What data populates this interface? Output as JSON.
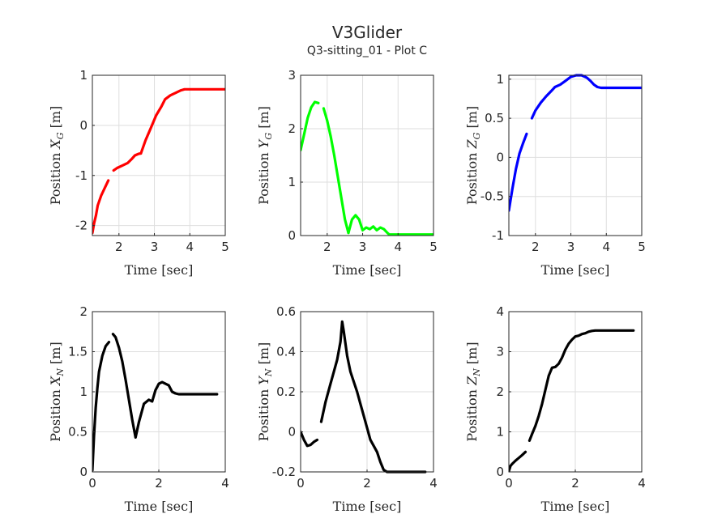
{
  "figure": {
    "title": "V3Glider",
    "subtitle": "Q3-sitting_01 - Plot C"
  },
  "chart_data": [
    {
      "type": "line",
      "xlabel": "Time [sec]",
      "ylabel": "Position",
      "ylabel_symbol": "X",
      "ylabel_sub": "G",
      "ylabel_unit": "[m]",
      "xlim": [
        1.25,
        5
      ],
      "ylim": [
        -2.2,
        1
      ],
      "xticks": [
        2,
        3,
        4,
        5
      ],
      "yticks": [
        -2,
        -1,
        0,
        1
      ],
      "xtick_labels": [
        "2",
        "3",
        "4",
        "5"
      ],
      "ytick_labels": [
        "-2",
        "-1",
        "0",
        "1"
      ],
      "grid": true,
      "color": "#ff0000",
      "series": [
        {
          "x": [
            1.25,
            1.3,
            1.35,
            1.4,
            1.5,
            1.6,
            1.7
          ],
          "y": [
            -2.15,
            -1.95,
            -1.8,
            -1.6,
            -1.4,
            -1.25,
            -1.1
          ]
        },
        {
          "x": [
            1.85,
            1.95,
            2.1,
            2.25,
            2.35,
            2.45,
            2.55,
            2.62
          ],
          "y": [
            -0.9,
            -0.85,
            -0.8,
            -0.75,
            -0.68,
            -0.6,
            -0.57,
            -0.56
          ]
        },
        {
          "x": [
            2.62,
            2.75,
            2.9,
            3.05,
            3.2,
            3.3,
            3.45,
            3.6,
            3.75,
            3.85,
            4.2,
            4.6,
            5.0
          ],
          "y": [
            -0.56,
            -0.3,
            -0.05,
            0.2,
            0.38,
            0.52,
            0.6,
            0.65,
            0.7,
            0.72,
            0.72,
            0.72,
            0.72
          ]
        }
      ]
    },
    {
      "type": "line",
      "xlabel": "Time [sec]",
      "ylabel": "Position",
      "ylabel_symbol": "Y",
      "ylabel_sub": "G",
      "ylabel_unit": "[m]",
      "xlim": [
        1.25,
        5
      ],
      "ylim": [
        0,
        3
      ],
      "xticks": [
        2,
        3,
        4,
        5
      ],
      "yticks": [
        0,
        1,
        2,
        3
      ],
      "xtick_labels": [
        "2",
        "3",
        "4",
        "5"
      ],
      "ytick_labels": [
        "0",
        "1",
        "2",
        "3"
      ],
      "grid": true,
      "color": "#00ff00",
      "series": [
        {
          "x": [
            1.25,
            1.35,
            1.45,
            1.55,
            1.65,
            1.75
          ],
          "y": [
            1.6,
            1.9,
            2.2,
            2.4,
            2.5,
            2.48
          ]
        },
        {
          "x": [
            1.9,
            2.0,
            2.1,
            2.2,
            2.3,
            2.4,
            2.5,
            2.6
          ],
          "y": [
            2.38,
            2.15,
            1.85,
            1.5,
            1.1,
            0.7,
            0.3,
            0.05
          ]
        },
        {
          "x": [
            2.6,
            2.7,
            2.8,
            2.9,
            3.0,
            3.1,
            3.2,
            3.3,
            3.4,
            3.5,
            3.6,
            3.7,
            3.75,
            3.8,
            4.2,
            4.6,
            5.0
          ],
          "y": [
            0.05,
            0.3,
            0.38,
            0.3,
            0.1,
            0.15,
            0.12,
            0.17,
            0.1,
            0.15,
            0.12,
            0.05,
            0.02,
            0.02,
            0.02,
            0.02,
            0.02
          ]
        }
      ]
    },
    {
      "type": "line",
      "xlabel": "Time [sec]",
      "ylabel": "Position",
      "ylabel_symbol": "Z",
      "ylabel_sub": "G",
      "ylabel_unit": "[m]",
      "xlim": [
        1.25,
        5
      ],
      "ylim": [
        -1,
        1.05
      ],
      "xticks": [
        2,
        3,
        4,
        5
      ],
      "yticks": [
        -1,
        -0.5,
        0,
        0.5,
        1
      ],
      "xtick_labels": [
        "2",
        "3",
        "4",
        "5"
      ],
      "ytick_labels": [
        "-1",
        "-0.5",
        "0",
        "0.5",
        "1"
      ],
      "grid": true,
      "color": "#0000ff",
      "series": [
        {
          "x": [
            1.25,
            1.35,
            1.45,
            1.55,
            1.65,
            1.75
          ],
          "y": [
            -0.68,
            -0.4,
            -0.15,
            0.05,
            0.18,
            0.3
          ]
        },
        {
          "x": [
            1.9,
            2.0,
            2.15,
            2.3,
            2.45,
            2.55,
            2.7,
            2.85,
            3.0,
            3.15,
            3.3,
            3.45,
            3.55,
            3.65,
            3.75,
            3.85,
            4.2,
            4.6,
            5.0
          ],
          "y": [
            0.5,
            0.6,
            0.7,
            0.78,
            0.85,
            0.9,
            0.93,
            0.98,
            1.03,
            1.05,
            1.05,
            1.02,
            0.98,
            0.93,
            0.9,
            0.89,
            0.89,
            0.89,
            0.89
          ]
        }
      ]
    },
    {
      "type": "line",
      "xlabel": "Time [sec]",
      "ylabel": "Position",
      "ylabel_symbol": "X",
      "ylabel_sub": "N",
      "ylabel_unit": "[m]",
      "xlim": [
        0,
        4
      ],
      "ylim": [
        0,
        2
      ],
      "xticks": [
        0,
        2,
        4
      ],
      "yticks": [
        0,
        0.5,
        1,
        1.5,
        2
      ],
      "xtick_labels": [
        "0",
        "2",
        "4"
      ],
      "ytick_labels": [
        "0",
        "0.5",
        "1",
        "1.5",
        "2"
      ],
      "grid": true,
      "color": "#000000",
      "series": [
        {
          "x": [
            0.0,
            0.05,
            0.1,
            0.15,
            0.2,
            0.3,
            0.4,
            0.5
          ],
          "y": [
            0.02,
            0.45,
            0.8,
            1.05,
            1.25,
            1.45,
            1.57,
            1.62
          ]
        },
        {
          "x": [
            0.62,
            0.7,
            0.8,
            0.9,
            1.0,
            1.1,
            1.2,
            1.3,
            1.4,
            1.55,
            1.7,
            1.8,
            1.9,
            2.0,
            2.1,
            2.2,
            2.3,
            2.4,
            2.5,
            2.6,
            3.0,
            3.4,
            3.75
          ],
          "y": [
            1.72,
            1.68,
            1.55,
            1.38,
            1.15,
            0.9,
            0.65,
            0.43,
            0.62,
            0.85,
            0.9,
            0.88,
            1.02,
            1.1,
            1.12,
            1.1,
            1.08,
            1.0,
            0.98,
            0.97,
            0.97,
            0.97,
            0.97
          ]
        }
      ]
    },
    {
      "type": "line",
      "xlabel": "Time [sec]",
      "ylabel": "Position",
      "ylabel_symbol": "Y",
      "ylabel_sub": "N",
      "ylabel_unit": "[m]",
      "xlim": [
        0,
        4
      ],
      "ylim": [
        -0.2,
        0.6
      ],
      "xticks": [
        0,
        2,
        4
      ],
      "yticks": [
        -0.2,
        0,
        0.2,
        0.4,
        0.6
      ],
      "xtick_labels": [
        "0",
        "2",
        "4"
      ],
      "ytick_labels": [
        "-0.2",
        "0",
        "0.2",
        "0.4",
        "0.6"
      ],
      "grid": true,
      "color": "#000000",
      "series": [
        {
          "x": [
            0.0,
            0.1,
            0.2,
            0.3,
            0.4,
            0.5
          ],
          "y": [
            0.0,
            -0.04,
            -0.07,
            -0.065,
            -0.05,
            -0.04
          ]
        },
        {
          "x": [
            0.62,
            0.75,
            0.9,
            1.0,
            1.1,
            1.2,
            1.25,
            1.3,
            1.4,
            1.5,
            1.6,
            1.7,
            1.8,
            1.9,
            2.0,
            2.1,
            2.2,
            2.3,
            2.4,
            2.5,
            2.6,
            2.8,
            3.2,
            3.75
          ],
          "y": [
            0.05,
            0.15,
            0.24,
            0.3,
            0.36,
            0.45,
            0.55,
            0.5,
            0.38,
            0.3,
            0.25,
            0.2,
            0.14,
            0.08,
            0.02,
            -0.04,
            -0.07,
            -0.1,
            -0.15,
            -0.19,
            -0.2,
            -0.2,
            -0.2,
            -0.2
          ]
        }
      ]
    },
    {
      "type": "line",
      "xlabel": "Time [sec]",
      "ylabel": "Position",
      "ylabel_symbol": "Z",
      "ylabel_sub": "N",
      "ylabel_unit": "[m]",
      "xlim": [
        0,
        4
      ],
      "ylim": [
        0,
        4
      ],
      "xticks": [
        0,
        2,
        4
      ],
      "yticks": [
        0,
        1,
        2,
        3,
        4
      ],
      "xtick_labels": [
        "0",
        "2",
        "4"
      ],
      "ytick_labels": [
        "0",
        "1",
        "2",
        "3",
        "4"
      ],
      "grid": true,
      "color": "#000000",
      "series": [
        {
          "x": [
            0.0,
            0.05,
            0.1,
            0.2,
            0.3,
            0.4,
            0.5
          ],
          "y": [
            0.02,
            0.15,
            0.2,
            0.28,
            0.35,
            0.42,
            0.5
          ]
        },
        {
          "x": [
            0.62,
            0.7,
            0.8,
            0.9,
            1.0,
            1.1,
            1.2,
            1.3,
            1.4,
            1.5,
            1.6,
            1.7,
            1.8,
            1.9,
            2.0,
            2.1,
            2.2,
            2.3,
            2.4,
            2.5,
            2.6,
            3.0,
            3.4,
            3.75
          ],
          "y": [
            0.78,
            0.95,
            1.15,
            1.4,
            1.7,
            2.05,
            2.4,
            2.6,
            2.62,
            2.7,
            2.85,
            3.05,
            3.2,
            3.3,
            3.38,
            3.4,
            3.44,
            3.46,
            3.5,
            3.52,
            3.53,
            3.53,
            3.53,
            3.53
          ]
        }
      ]
    }
  ]
}
